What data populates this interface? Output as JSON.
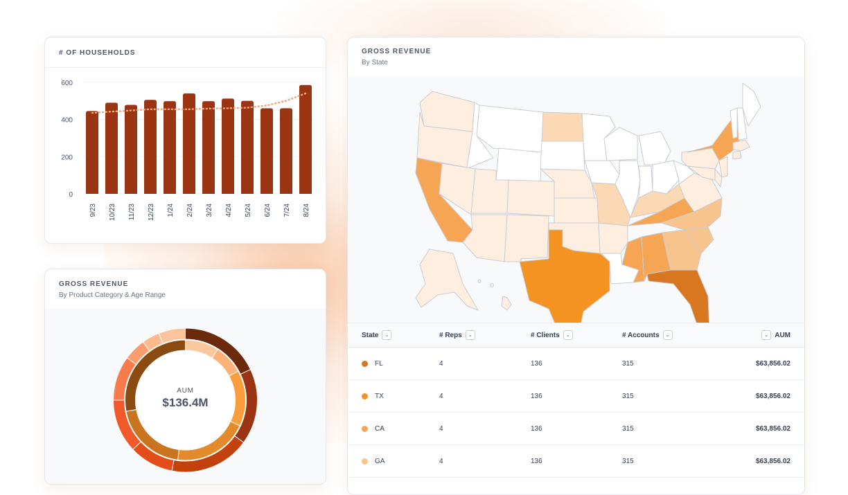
{
  "households_card": {
    "title": "# OF HOUSEHOLDS"
  },
  "revenue_product_card": {
    "title": "GROSS REVENUE",
    "subtitle": "By Product Category & Age Range",
    "center_label": "AUM",
    "center_value": "$136.4M",
    "outer_ring": [
      {
        "value": 18,
        "color": "#6b2a0c"
      },
      {
        "value": 17,
        "color": "#9a3412"
      },
      {
        "value": 18,
        "color": "#c2410c"
      },
      {
        "value": 10,
        "color": "#e24d1a"
      },
      {
        "value": 12,
        "color": "#f0592a"
      },
      {
        "value": 10,
        "color": "#f97a4a"
      },
      {
        "value": 5,
        "color": "#fb9c6c"
      },
      {
        "value": 4,
        "color": "#fdba8c"
      },
      {
        "value": 6,
        "color": "#fbc49c"
      }
    ],
    "inner_ring": [
      {
        "value": 9,
        "color": "#fbc89e"
      },
      {
        "value": 8,
        "color": "#fdb27a"
      },
      {
        "value": 15,
        "color": "#fb9d3d"
      },
      {
        "value": 20,
        "color": "#e38a2c"
      },
      {
        "value": 20,
        "color": "#c8751e"
      },
      {
        "value": 28,
        "color": "#8a4a10"
      }
    ]
  },
  "revenue_state_card": {
    "title": "GROSS REVENUE",
    "subtitle": "By State",
    "table": {
      "headers": {
        "state": "State",
        "reps": "# Reps",
        "clients": "# Clients",
        "accounts": "# Accounts",
        "aum": "AUM"
      },
      "rows": [
        {
          "state": "FL",
          "reps": "4",
          "clients": "136",
          "accounts": "315",
          "aum": "$63,856.02",
          "color": "#d97720"
        },
        {
          "state": "TX",
          "reps": "4",
          "clients": "136",
          "accounts": "315",
          "aum": "$63,856.02",
          "color": "#f59322"
        },
        {
          "state": "CA",
          "reps": "4",
          "clients": "136",
          "accounts": "315",
          "aum": "$63,856.02",
          "color": "#f6a555"
        },
        {
          "state": "GA",
          "reps": "4",
          "clients": "136",
          "accounts": "315",
          "aum": "$63,856.02",
          "color": "#f8c48e"
        }
      ]
    },
    "map_colors": {
      "none": "#ffffff",
      "light": "#fdeee0",
      "mid": "#fbd9b4",
      "ga": "#f8c48e",
      "ca": "#f6a555",
      "tx": "#f59322",
      "fl": "#d97720",
      "border": "#c9ccd2"
    }
  },
  "chart_data": {
    "type": "bar",
    "categories": [
      "9/23",
      "10/23",
      "11/23",
      "12/23",
      "1/24",
      "2/24",
      "3/24",
      "4/24",
      "5/24",
      "6/24",
      "7/24",
      "8/24"
    ],
    "series": [
      {
        "values": [
          445,
          490,
          478,
          505,
          498,
          540,
          498,
          512,
          500,
          460,
          460,
          585
        ],
        "color": "#9a3412"
      },
      {
        "values": [
          435,
          442,
          448,
          455,
          455,
          455,
          458,
          460,
          463,
          475,
          500,
          540
        ],
        "color": "#f4a47a",
        "style": "dotted-line"
      }
    ],
    "y_ticks": [
      0,
      200,
      400,
      600
    ],
    "ylim": [
      0,
      640
    ],
    "grid": true
  }
}
